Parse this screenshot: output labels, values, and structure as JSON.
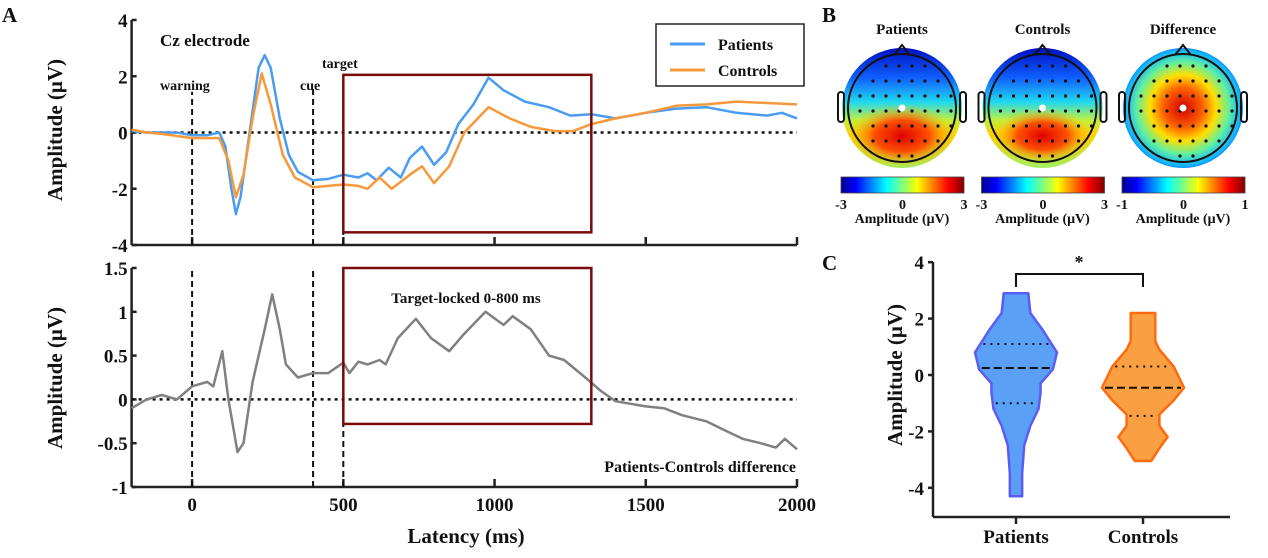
{
  "panel_labels": {
    "a": "A",
    "b": "B",
    "c": "C"
  },
  "chart_data": [
    {
      "id": "A-top",
      "type": "line",
      "title": "Cz electrode",
      "ylabel": "Amplitude (μV)",
      "xlim": [
        -200,
        2000
      ],
      "ylim": [
        -4,
        4
      ],
      "yticks": [
        "4",
        "2",
        "0",
        "-2",
        "-4"
      ],
      "event_labels": {
        "warning": "warning",
        "cue": "cue",
        "target": "target"
      },
      "events_ms": {
        "warning": 0,
        "cue": 400,
        "target": 500
      },
      "window_ms": [
        500,
        1320
      ],
      "legend": {
        "placement": "top-right",
        "items": [
          "Patients",
          "Controls"
        ]
      },
      "series": [
        {
          "name": "Patients",
          "color": "#4a9cf0",
          "points": [
            [
              -200,
              0.05
            ],
            [
              -150,
              0
            ],
            [
              -100,
              0
            ],
            [
              -50,
              0
            ],
            [
              0,
              -0.1
            ],
            [
              50,
              -0.1
            ],
            [
              90,
              0
            ],
            [
              110,
              -0.5
            ],
            [
              130,
              -2
            ],
            [
              145,
              -2.9
            ],
            [
              160,
              -2.3
            ],
            [
              190,
              0
            ],
            [
              220,
              2.3
            ],
            [
              240,
              2.75
            ],
            [
              260,
              2.3
            ],
            [
              290,
              0.5
            ],
            [
              320,
              -0.8
            ],
            [
              350,
              -1.4
            ],
            [
              400,
              -1.7
            ],
            [
              450,
              -1.65
            ],
            [
              500,
              -1.5
            ],
            [
              550,
              -1.6
            ],
            [
              580,
              -1.45
            ],
            [
              610,
              -1.7
            ],
            [
              650,
              -1.25
            ],
            [
              690,
              -1.6
            ],
            [
              720,
              -0.9
            ],
            [
              760,
              -0.5
            ],
            [
              800,
              -1.15
            ],
            [
              840,
              -0.7
            ],
            [
              880,
              0.3
            ],
            [
              930,
              1.0
            ],
            [
              980,
              1.95
            ],
            [
              1030,
              1.5
            ],
            [
              1100,
              1.1
            ],
            [
              1180,
              0.9
            ],
            [
              1250,
              0.6
            ],
            [
              1320,
              0.65
            ],
            [
              1400,
              0.5
            ],
            [
              1500,
              0.7
            ],
            [
              1600,
              0.85
            ],
            [
              1700,
              0.9
            ],
            [
              1800,
              0.7
            ],
            [
              1900,
              0.6
            ],
            [
              1950,
              0.7
            ],
            [
              2000,
              0.5
            ]
          ]
        },
        {
          "name": "Controls",
          "color": "#f7993a",
          "points": [
            [
              -200,
              0.1
            ],
            [
              -150,
              0
            ],
            [
              -100,
              -0.05
            ],
            [
              0,
              -0.2
            ],
            [
              90,
              -0.2
            ],
            [
              120,
              -1
            ],
            [
              145,
              -2.3
            ],
            [
              170,
              -1.5
            ],
            [
              200,
              0.5
            ],
            [
              230,
              2.1
            ],
            [
              260,
              1
            ],
            [
              300,
              -0.8
            ],
            [
              340,
              -1.6
            ],
            [
              400,
              -1.95
            ],
            [
              450,
              -1.9
            ],
            [
              500,
              -1.85
            ],
            [
              550,
              -1.9
            ],
            [
              580,
              -2.0
            ],
            [
              620,
              -1.6
            ],
            [
              660,
              -2.0
            ],
            [
              720,
              -1.5
            ],
            [
              760,
              -1.2
            ],
            [
              800,
              -1.8
            ],
            [
              850,
              -1.2
            ],
            [
              900,
              0
            ],
            [
              980,
              0.9
            ],
            [
              1050,
              0.5
            ],
            [
              1120,
              0.2
            ],
            [
              1200,
              0.05
            ],
            [
              1260,
              0.05
            ],
            [
              1320,
              0.3
            ],
            [
              1400,
              0.5
            ],
            [
              1500,
              0.7
            ],
            [
              1600,
              0.95
            ],
            [
              1700,
              1.0
            ],
            [
              1800,
              1.1
            ],
            [
              1900,
              1.05
            ],
            [
              2000,
              1.0
            ]
          ]
        }
      ]
    },
    {
      "id": "A-bottom",
      "type": "line",
      "annotation": "Target-locked 0-800 ms",
      "series_label": "Patients-Controls difference",
      "xlabel": "Latency (ms)",
      "ylabel": "Amplitude (μV)",
      "xlim": [
        -200,
        2000
      ],
      "ylim": [
        -1,
        1.5
      ],
      "xticks": [
        "0",
        "500",
        "1000",
        "1500",
        "2000"
      ],
      "yticks": [
        "1.5",
        "1",
        "0.5",
        "0",
        "-0.5",
        "-1"
      ],
      "window_ms": [
        500,
        1320
      ],
      "series": [
        {
          "color": "#808080",
          "points": [
            [
              -200,
              -0.1
            ],
            [
              -150,
              0
            ],
            [
              -100,
              0.05
            ],
            [
              -50,
              0
            ],
            [
              0,
              0.15
            ],
            [
              50,
              0.2
            ],
            [
              70,
              0.15
            ],
            [
              100,
              0.55
            ],
            [
              120,
              0
            ],
            [
              150,
              -0.6
            ],
            [
              170,
              -0.5
            ],
            [
              200,
              0.2
            ],
            [
              240,
              0.8
            ],
            [
              265,
              1.2
            ],
            [
              290,
              0.8
            ],
            [
              310,
              0.4
            ],
            [
              350,
              0.25
            ],
            [
              400,
              0.3
            ],
            [
              450,
              0.3
            ],
            [
              500,
              0.42
            ],
            [
              520,
              0.3
            ],
            [
              550,
              0.43
            ],
            [
              580,
              0.4
            ],
            [
              620,
              0.45
            ],
            [
              640,
              0.4
            ],
            [
              680,
              0.7
            ],
            [
              740,
              0.92
            ],
            [
              790,
              0.7
            ],
            [
              850,
              0.55
            ],
            [
              900,
              0.75
            ],
            [
              970,
              1.0
            ],
            [
              1010,
              0.9
            ],
            [
              1030,
              0.85
            ],
            [
              1060,
              0.95
            ],
            [
              1120,
              0.8
            ],
            [
              1180,
              0.5
            ],
            [
              1230,
              0.45
            ],
            [
              1300,
              0.25
            ],
            [
              1350,
              0.1
            ],
            [
              1400,
              -0.02
            ],
            [
              1450,
              -0.05
            ],
            [
              1500,
              -0.08
            ],
            [
              1560,
              -0.1
            ],
            [
              1620,
              -0.18
            ],
            [
              1700,
              -0.25
            ],
            [
              1760,
              -0.35
            ],
            [
              1820,
              -0.45
            ],
            [
              1880,
              -0.5
            ],
            [
              1930,
              -0.55
            ],
            [
              1960,
              -0.45
            ],
            [
              2000,
              -0.57
            ]
          ]
        }
      ]
    },
    {
      "id": "B",
      "type": "heatmap",
      "maps": [
        {
          "title": "Patients",
          "range": [
            -3,
            3
          ],
          "ticks": [
            "-3",
            "0",
            "3"
          ],
          "label": "Amplitude (μV)",
          "pattern": "frontal-negative, posterior-positive"
        },
        {
          "title": "Controls",
          "range": [
            -3,
            3
          ],
          "ticks": [
            "-3",
            "0",
            "3"
          ],
          "label": "Amplitude (μV)",
          "pattern": "frontal-negative, posterior-positive"
        },
        {
          "title": "Difference",
          "range": [
            -1,
            1
          ],
          "ticks": [
            "-1",
            "0",
            "1"
          ],
          "label": "Amplitude (μV)",
          "pattern": "central-positive"
        }
      ],
      "colormap": "jet"
    },
    {
      "id": "C",
      "type": "violin",
      "ylabel": "Amplitude (μV)",
      "ylim": [
        -5,
        4
      ],
      "yticks": [
        "4",
        "2",
        "0",
        "-2",
        "-4"
      ],
      "significance": "*",
      "groups": [
        {
          "name": "Patients",
          "fill": "#5aa0f7",
          "stroke": "#5b5cf0",
          "max": 2.9,
          "min": -4.3,
          "median": 0.25,
          "q1": -1.0,
          "q3": 1.1,
          "density": [
            [
              2.9,
              0.3
            ],
            [
              2.2,
              0.35
            ],
            [
              1.6,
              0.65
            ],
            [
              0.8,
              1.0
            ],
            [
              0.2,
              0.9
            ],
            [
              -0.3,
              0.6
            ],
            [
              -0.6,
              0.6
            ],
            [
              -1.2,
              0.55
            ],
            [
              -1.8,
              0.35
            ],
            [
              -2.5,
              0.2
            ],
            [
              -3.5,
              0.15
            ],
            [
              -4.3,
              0.15
            ]
          ]
        },
        {
          "name": "Controls",
          "fill": "#fba042",
          "stroke": "#ff6a10",
          "max": 2.2,
          "min": -3.05,
          "median": -0.45,
          "q1": -1.45,
          "q3": 0.3,
          "density": [
            [
              2.2,
              0.3
            ],
            [
              1.2,
              0.3
            ],
            [
              0.9,
              0.4
            ],
            [
              0.3,
              0.75
            ],
            [
              -0.45,
              1.0
            ],
            [
              -0.9,
              0.75
            ],
            [
              -1.4,
              0.4
            ],
            [
              -1.8,
              0.4
            ],
            [
              -2.2,
              0.6
            ],
            [
              -2.6,
              0.4
            ],
            [
              -3.05,
              0.2
            ]
          ]
        }
      ]
    }
  ],
  "colors": {
    "window_box": "#7a0a0a"
  }
}
